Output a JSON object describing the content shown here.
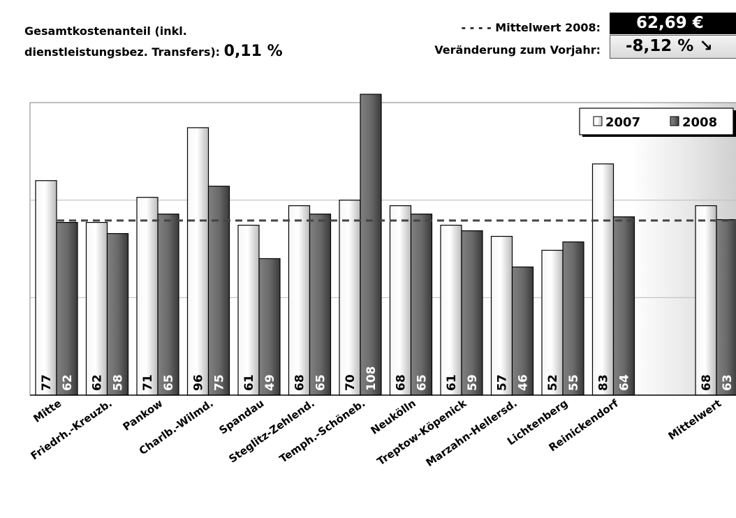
{
  "header": {
    "cost_share_label_line1": "Gesamtkostenanteil (inkl.",
    "cost_share_label_line2": "dienstleistungsbez. Transfers):",
    "cost_share_value": "0,11 %",
    "mean_label": "- - - -  Mittelwert 2008:",
    "mean_value": "62,69 €",
    "change_label": "Veränderung zum Vorjahr:",
    "change_value": "-8,12 %",
    "change_arrow": "↘"
  },
  "colors": {
    "bar_2007_light": "#f6f6f6",
    "bar_2007_dark": "#bcbcbc",
    "bar_2008_light": "#808080",
    "bar_2008_dark": "#3a3a3a",
    "mean_line": "#444444",
    "grid": "#bfbfbf"
  },
  "chart_data": {
    "type": "bar",
    "categories": [
      "Mitte",
      "Friedrh.-Kreuzb.",
      "Pankow",
      "Charlb.-Wilmd.",
      "Spandau",
      "Steglitz-Zehlend.",
      "Temph.-Schöneb.",
      "Neukölln",
      "Treptow-Köpenick",
      "Marzahn-Hellersd.",
      "Lichtenberg",
      "Reinickendorf",
      "Mittelwert"
    ],
    "series": [
      {
        "name": "2007",
        "values": [
          77,
          62,
          71,
          96,
          61,
          68,
          70,
          68,
          61,
          57,
          52,
          83,
          68
        ],
        "labels": [
          "77",
          "62",
          "71",
          "96",
          "61",
          "68",
          "70",
          "68",
          "61",
          "57",
          "52",
          "83",
          "68"
        ]
      },
      {
        "name": "2008",
        "values": [
          62,
          58,
          65,
          75,
          49,
          65,
          108,
          65,
          59,
          46,
          55,
          64,
          63
        ],
        "labels": [
          "62",
          "58",
          "65",
          "75",
          "49",
          "65",
          "108",
          "65",
          "59",
          "46",
          "55",
          "64",
          "63"
        ]
      }
    ],
    "mean_line_value": 62.69,
    "ylim": [
      0,
      105
    ],
    "grid": "horizontal",
    "legend_position": "top-right"
  }
}
